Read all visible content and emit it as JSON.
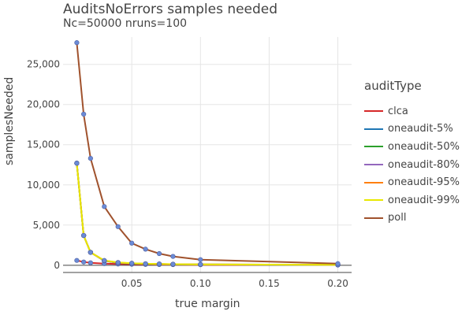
{
  "chart_data": {
    "type": "line",
    "title": "AuditsNoErrors samples needed",
    "subtitle": "Nc=50000 nruns=100",
    "xlabel": "true margin",
    "ylabel": "samplesNeeded",
    "xlim": [
      0.0,
      0.21
    ],
    "ylim": [
      -900,
      28400
    ],
    "grid": true,
    "legend_title": "auditType",
    "legend_position": "right",
    "x_ticks": [
      0.05,
      0.1,
      0.15,
      0.2
    ],
    "x_tick_labels": [
      "0.05",
      "0.10",
      "0.15",
      "0.20"
    ],
    "y_ticks": [
      0,
      5000,
      10000,
      15000,
      20000,
      25000
    ],
    "y_tick_labels": [
      "0",
      "5,000",
      "10,000",
      "15,000",
      "20,000",
      "25,000"
    ],
    "x": [
      0.01,
      0.015,
      0.02,
      0.03,
      0.04,
      0.05,
      0.06,
      0.07,
      0.08,
      0.1,
      0.2
    ],
    "series": [
      {
        "name": "clca",
        "color": "#d62728",
        "values": [
          600,
          400,
          300,
          200,
          150,
          120,
          100,
          85,
          75,
          60,
          30
        ]
      },
      {
        "name": "oneaudit-5%",
        "color": "#1f77b4",
        "values": [
          12700,
          3700,
          1600,
          550,
          300,
          210,
          160,
          130,
          110,
          85,
          40
        ]
      },
      {
        "name": "oneaudit-50%",
        "color": "#2ca02c",
        "values": [
          12700,
          3700,
          1600,
          560,
          310,
          220,
          170,
          140,
          115,
          90,
          45
        ]
      },
      {
        "name": "oneaudit-80%",
        "color": "#9467bd",
        "values": [
          12700,
          3700,
          1600,
          570,
          320,
          230,
          175,
          145,
          120,
          95,
          50
        ]
      },
      {
        "name": "oneaudit-95%",
        "color": "#ff7f0e",
        "values": [
          12700,
          3700,
          1600,
          580,
          330,
          240,
          180,
          150,
          125,
          100,
          55
        ]
      },
      {
        "name": "oneaudit-99%",
        "color": "#e8e800",
        "values": [
          12700,
          3700,
          1600,
          590,
          340,
          250,
          185,
          155,
          130,
          105,
          60
        ]
      },
      {
        "name": "poll",
        "color": "#a0522d",
        "values": [
          27700,
          18800,
          13300,
          7300,
          4800,
          2750,
          2000,
          1450,
          1100,
          700,
          200
        ]
      }
    ]
  }
}
